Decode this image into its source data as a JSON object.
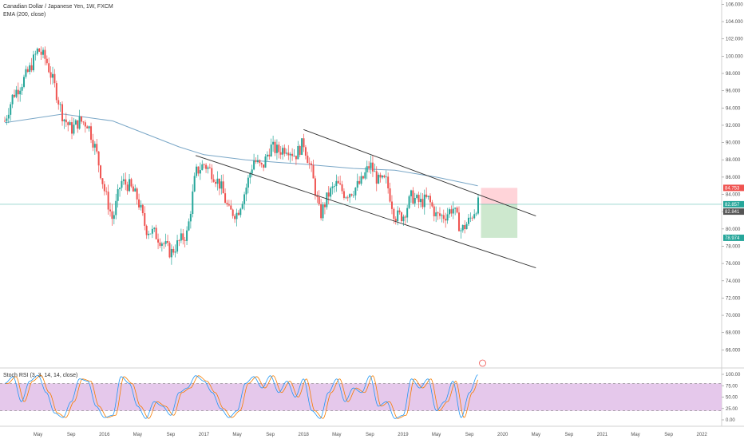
{
  "header": {
    "title": "Canadian Dollar / Japanese Yen, 1W, FXCM",
    "ema_label": "EMA (200, close)",
    "stoch_label": "Stoch RSI (3, 3, 14, 14, close)"
  },
  "colors": {
    "up": "#26a69a",
    "down": "#ef5350",
    "ema": "#7aa7c7",
    "stoch_k": "#2196f3",
    "stoch_d": "#f57c00",
    "stoch_band": "#e1bee7",
    "risk_zone": "#ffcdd2",
    "reward_zone": "#c8e6c9",
    "channel": "#333333",
    "current_line": "#26a69a"
  },
  "chart_data": [
    {
      "type": "candlestick",
      "title": "Canadian Dollar / Japanese Yen, 1W, FXCM",
      "ylim": [
        64.0,
        106.5
      ],
      "y_ticks": [
        "106.000",
        "104.000",
        "102.000",
        "100.000",
        "98.000",
        "96.000",
        "94.000",
        "92.000",
        "90.000",
        "88.000",
        "86.000",
        "84.000",
        "82.000",
        "80.000",
        "78.000",
        "76.000",
        "74.000",
        "72.000",
        "70.000",
        "68.000",
        "66.000"
      ],
      "x_ticks": [
        "May",
        "Sep",
        "2016",
        "May",
        "Sep",
        "2017",
        "May",
        "Sep",
        "2018",
        "May",
        "Sep",
        "2019",
        "May",
        "Sep",
        "2020",
        "May",
        "Sep",
        "2021",
        "May",
        "Sep",
        "2022"
      ],
      "xlim": [
        "2015-01",
        "2022-03"
      ],
      "price_path": [
        {
          "x": "2015-01",
          "y": 92.5
        },
        {
          "x": "2015-02",
          "y": 95.5
        },
        {
          "x": "2015-03",
          "y": 96.8
        },
        {
          "x": "2015-04",
          "y": 98.5
        },
        {
          "x": "2015-05",
          "y": 100.8
        },
        {
          "x": "2015-06",
          "y": 99.5
        },
        {
          "x": "2015-07",
          "y": 96.5
        },
        {
          "x": "2015-08",
          "y": 93.0
        },
        {
          "x": "2015-09",
          "y": 91.5
        },
        {
          "x": "2015-10",
          "y": 92.5
        },
        {
          "x": "2015-11",
          "y": 92.2
        },
        {
          "x": "2015-12",
          "y": 89.0
        },
        {
          "x": "2016-01",
          "y": 84.5
        },
        {
          "x": "2016-02",
          "y": 81.0
        },
        {
          "x": "2016-03",
          "y": 85.5
        },
        {
          "x": "2016-04",
          "y": 85.0
        },
        {
          "x": "2016-05",
          "y": 83.5
        },
        {
          "x": "2016-06",
          "y": 80.0
        },
        {
          "x": "2016-07",
          "y": 79.5
        },
        {
          "x": "2016-08",
          "y": 78.5
        },
        {
          "x": "2016-09",
          "y": 77.2
        },
        {
          "x": "2016-10",
          "y": 78.5
        },
        {
          "x": "2016-11",
          "y": 79.5
        },
        {
          "x": "2016-12",
          "y": 86.5
        },
        {
          "x": "2017-01",
          "y": 87.5
        },
        {
          "x": "2017-02",
          "y": 86.5
        },
        {
          "x": "2017-03",
          "y": 85.0
        },
        {
          "x": "2017-04",
          "y": 82.0
        },
        {
          "x": "2017-05",
          "y": 81.8
        },
        {
          "x": "2017-06",
          "y": 84.5
        },
        {
          "x": "2017-07",
          "y": 88.0
        },
        {
          "x": "2017-08",
          "y": 87.0
        },
        {
          "x": "2017-09",
          "y": 89.5
        },
        {
          "x": "2017-10",
          "y": 89.0
        },
        {
          "x": "2017-11",
          "y": 89.5
        },
        {
          "x": "2017-12",
          "y": 88.5
        },
        {
          "x": "2018-01",
          "y": 90.0
        },
        {
          "x": "2018-02",
          "y": 86.5
        },
        {
          "x": "2018-03",
          "y": 81.5
        },
        {
          "x": "2018-04",
          "y": 84.0
        },
        {
          "x": "2018-05",
          "y": 85.2
        },
        {
          "x": "2018-06",
          "y": 84.0
        },
        {
          "x": "2018-07",
          "y": 84.5
        },
        {
          "x": "2018-08",
          "y": 85.5
        },
        {
          "x": "2018-09",
          "y": 87.5
        },
        {
          "x": "2018-10",
          "y": 85.5
        },
        {
          "x": "2018-11",
          "y": 85.5
        },
        {
          "x": "2018-12",
          "y": 81.5
        },
        {
          "x": "2019-01",
          "y": 81.5
        },
        {
          "x": "2019-02",
          "y": 83.8
        },
        {
          "x": "2019-03",
          "y": 83.0
        },
        {
          "x": "2019-04",
          "y": 83.5
        },
        {
          "x": "2019-05",
          "y": 81.5
        },
        {
          "x": "2019-06",
          "y": 81.5
        },
        {
          "x": "2019-07",
          "y": 82.5
        },
        {
          "x": "2019-08",
          "y": 79.8
        },
        {
          "x": "2019-09",
          "y": 81.0
        },
        {
          "x": "2019-10",
          "y": 82.9
        }
      ],
      "ema_200": [
        {
          "x": "2015-01",
          "y": 92.3
        },
        {
          "x": "2015-08",
          "y": 93.3
        },
        {
          "x": "2016-02",
          "y": 92.5
        },
        {
          "x": "2016-06",
          "y": 91.0
        },
        {
          "x": "2016-10",
          "y": 89.5
        },
        {
          "x": "2017-01",
          "y": 88.6
        },
        {
          "x": "2017-06",
          "y": 88.0
        },
        {
          "x": "2017-10",
          "y": 87.7
        },
        {
          "x": "2018-01",
          "y": 87.5
        },
        {
          "x": "2018-07",
          "y": 87.0
        },
        {
          "x": "2018-12",
          "y": 86.8
        },
        {
          "x": "2019-05",
          "y": 86.0
        },
        {
          "x": "2019-10",
          "y": 85.0
        }
      ],
      "channel_lines": [
        {
          "from": {
            "x": "2018-01",
            "y": 91.5
          },
          "to": {
            "x": "2020-05",
            "y": 81.5
          }
        },
        {
          "from": {
            "x": "2016-12",
            "y": 88.5
          },
          "to": {
            "x": "2020-05",
            "y": 75.5
          }
        }
      ],
      "position_zone": {
        "start": "2019-10",
        "end": "2020-02",
        "stop": 84.753,
        "entry": 82.857,
        "target": 78.974
      },
      "price_tags": [
        {
          "label": "84.753",
          "y": 84.753,
          "color": "#ef5350"
        },
        {
          "label": "82.857",
          "y": 82.857,
          "color": "#26a69a"
        },
        {
          "label": "82.841",
          "y": 82.841,
          "color": "#555555"
        },
        {
          "label": "78.974",
          "y": 78.974,
          "color": "#26a69a"
        }
      ]
    },
    {
      "type": "line",
      "title": "Stoch RSI (3, 3, 14, 14, close)",
      "ylim": [
        0,
        100
      ],
      "y_ticks": [
        "100.00",
        "75.00",
        "50.00",
        "25.00",
        "0.00"
      ],
      "band": [
        20,
        80
      ],
      "series": [
        {
          "values": [
            {
              "x": "2015-01",
              "y": 80
            },
            {
              "x": "2015-02",
              "y": 95
            },
            {
              "x": "2015-03",
              "y": 40
            },
            {
              "x": "2015-04",
              "y": 85
            },
            {
              "x": "2015-05",
              "y": 98
            },
            {
              "x": "2015-06",
              "y": 60
            },
            {
              "x": "2015-07",
              "y": 15
            },
            {
              "x": "2015-08",
              "y": 5
            },
            {
              "x": "2015-09",
              "y": 40
            },
            {
              "x": "2015-10",
              "y": 90
            },
            {
              "x": "2015-11",
              "y": 85
            },
            {
              "x": "2015-12",
              "y": 30
            },
            {
              "x": "2016-01",
              "y": 5
            },
            {
              "x": "2016-02",
              "y": 10
            },
            {
              "x": "2016-03",
              "y": 95
            },
            {
              "x": "2016-04",
              "y": 80
            },
            {
              "x": "2016-05",
              "y": 30
            },
            {
              "x": "2016-06",
              "y": 3
            },
            {
              "x": "2016-07",
              "y": 40
            },
            {
              "x": "2016-08",
              "y": 30
            },
            {
              "x": "2016-09",
              "y": 10
            },
            {
              "x": "2016-10",
              "y": 60
            },
            {
              "x": "2016-11",
              "y": 70
            },
            {
              "x": "2016-12",
              "y": 97
            },
            {
              "x": "2017-01",
              "y": 85
            },
            {
              "x": "2017-02",
              "y": 60
            },
            {
              "x": "2017-03",
              "y": 25
            },
            {
              "x": "2017-04",
              "y": 5
            },
            {
              "x": "2017-05",
              "y": 20
            },
            {
              "x": "2017-06",
              "y": 80
            },
            {
              "x": "2017-07",
              "y": 95
            },
            {
              "x": "2017-08",
              "y": 70
            },
            {
              "x": "2017-09",
              "y": 97
            },
            {
              "x": "2017-10",
              "y": 60
            },
            {
              "x": "2017-11",
              "y": 85
            },
            {
              "x": "2017-12",
              "y": 50
            },
            {
              "x": "2018-01",
              "y": 90
            },
            {
              "x": "2018-02",
              "y": 20
            },
            {
              "x": "2018-03",
              "y": 3
            },
            {
              "x": "2018-04",
              "y": 60
            },
            {
              "x": "2018-05",
              "y": 90
            },
            {
              "x": "2018-06",
              "y": 40
            },
            {
              "x": "2018-07",
              "y": 70
            },
            {
              "x": "2018-08",
              "y": 60
            },
            {
              "x": "2018-09",
              "y": 97
            },
            {
              "x": "2018-10",
              "y": 30
            },
            {
              "x": "2018-11",
              "y": 40
            },
            {
              "x": "2018-12",
              "y": 3
            },
            {
              "x": "2019-01",
              "y": 10
            },
            {
              "x": "2019-02",
              "y": 90
            },
            {
              "x": "2019-03",
              "y": 70
            },
            {
              "x": "2019-04",
              "y": 90
            },
            {
              "x": "2019-05",
              "y": 20
            },
            {
              "x": "2019-06",
              "y": 40
            },
            {
              "x": "2019-07",
              "y": 85
            },
            {
              "x": "2019-08",
              "y": 5
            },
            {
              "x": "2019-09",
              "y": 60
            },
            {
              "x": "2019-10",
              "y": 99
            }
          ]
        }
      ]
    }
  ]
}
